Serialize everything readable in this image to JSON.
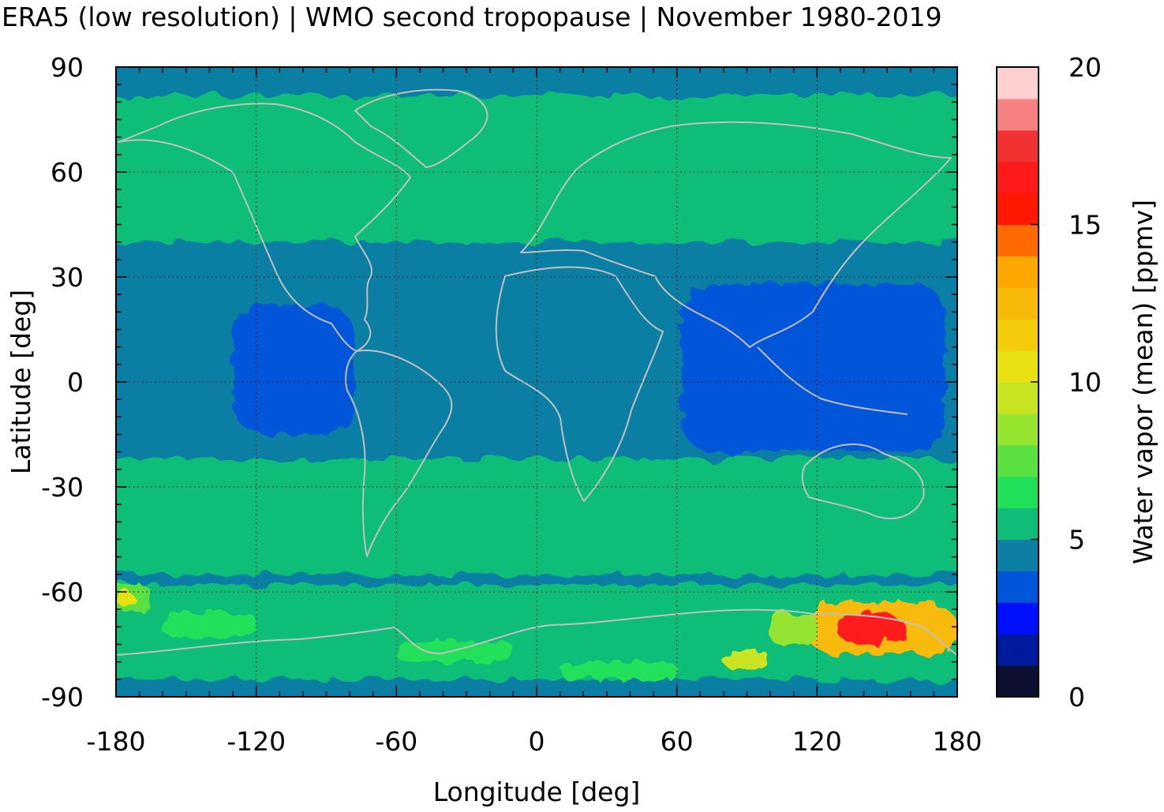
{
  "title": "ERA5 (low resolution) | WMO second tropopause | November 1980-2019",
  "x_axis": {
    "label": "Longitude [deg]",
    "range": [
      -180,
      180
    ],
    "ticks": [
      {
        "value": -180,
        "label": "-180"
      },
      {
        "value": -120,
        "label": "-120"
      },
      {
        "value": -60,
        "label": "-60"
      },
      {
        "value": 0,
        "label": "0"
      },
      {
        "value": 60,
        "label": "60"
      },
      {
        "value": 120,
        "label": "120"
      },
      {
        "value": 180,
        "label": "180"
      }
    ]
  },
  "y_axis": {
    "label": "Latitude [deg]",
    "range": [
      -90,
      90
    ],
    "ticks": [
      {
        "value": 90,
        "label": "90"
      },
      {
        "value": 60,
        "label": "60"
      },
      {
        "value": 30,
        "label": "30"
      },
      {
        "value": 0,
        "label": "0"
      },
      {
        "value": -30,
        "label": "-30"
      },
      {
        "value": -60,
        "label": "-60"
      },
      {
        "value": -90,
        "label": "-90"
      }
    ]
  },
  "colorbar": {
    "label": "Water vapor (mean) [ppmv]",
    "range": [
      0,
      20
    ],
    "ticks": [
      {
        "value": 0,
        "label": "0"
      },
      {
        "value": 5,
        "label": "5"
      },
      {
        "value": 10,
        "label": "10"
      },
      {
        "value": 15,
        "label": "15"
      },
      {
        "value": 20,
        "label": "20"
      }
    ],
    "colors": [
      "#0d0f30",
      "#001a9e",
      "#0010ff",
      "#0055d8",
      "#0e7fa4",
      "#0fbd78",
      "#20e05a",
      "#5ae040",
      "#95e430",
      "#c8e420",
      "#e8e010",
      "#f2cc0a",
      "#f7ba08",
      "#fca800",
      "#ff6a00",
      "#ff1800",
      "#ff1a1a",
      "#f23232",
      "#f78080",
      "#ffd0d0"
    ]
  },
  "map_colors": {
    "background": "#0b7fa3",
    "mid_band": "#10bd7a",
    "low_band": "#0855d6",
    "light_green": "#1fd85a",
    "yellow_green": "#9ee030",
    "yellow": "#f0d20a",
    "orange": "#ffa000",
    "red": "#ff1a10",
    "coastline": "#c0c0c0",
    "grid": "#000000"
  },
  "chart_data": {
    "type": "heatmap",
    "grid": true,
    "grid_style": "dotted",
    "variable": "Water vapor (mean) [ppmv]",
    "xlim": [
      -180,
      180
    ],
    "ylim": [
      -90,
      90
    ],
    "color_levels": [
      0,
      1,
      2,
      3,
      4,
      5,
      6,
      7,
      8,
      9,
      10,
      11,
      12,
      13,
      14,
      15,
      16,
      17,
      18,
      19,
      20
    ],
    "fields": [
      {
        "region": "background",
        "lon": [
          -180,
          180
        ],
        "lat": [
          -90,
          90
        ],
        "value": 4.5
      },
      {
        "region": "northern mid-latitudes",
        "lon": [
          -180,
          180
        ],
        "lat": [
          40,
          82
        ],
        "value": 5.5
      },
      {
        "region": "southern subtropics",
        "lon": [
          -180,
          180
        ],
        "lat": [
          -55,
          -22
        ],
        "value": 5.5
      },
      {
        "region": "southern high latitudes",
        "lon": [
          -180,
          180
        ],
        "lat": [
          -85,
          -58
        ],
        "value": 5.5
      },
      {
        "region": "western Pacific warm pool",
        "lon": [
          62,
          175
        ],
        "lat": [
          -20,
          28
        ],
        "value": 3.5
      },
      {
        "region": "eastern Pacific",
        "lon": [
          -130,
          -78
        ],
        "lat": [
          -15,
          22
        ],
        "value": 3.5
      },
      {
        "region": "Antarctic maximum",
        "lon": [
          115,
          180
        ],
        "lat": [
          -78,
          -63
        ],
        "value": 12
      },
      {
        "region": "Antarctic peak",
        "lon": [
          128,
          158
        ],
        "lat": [
          -75,
          -66
        ],
        "value": 16
      }
    ]
  }
}
